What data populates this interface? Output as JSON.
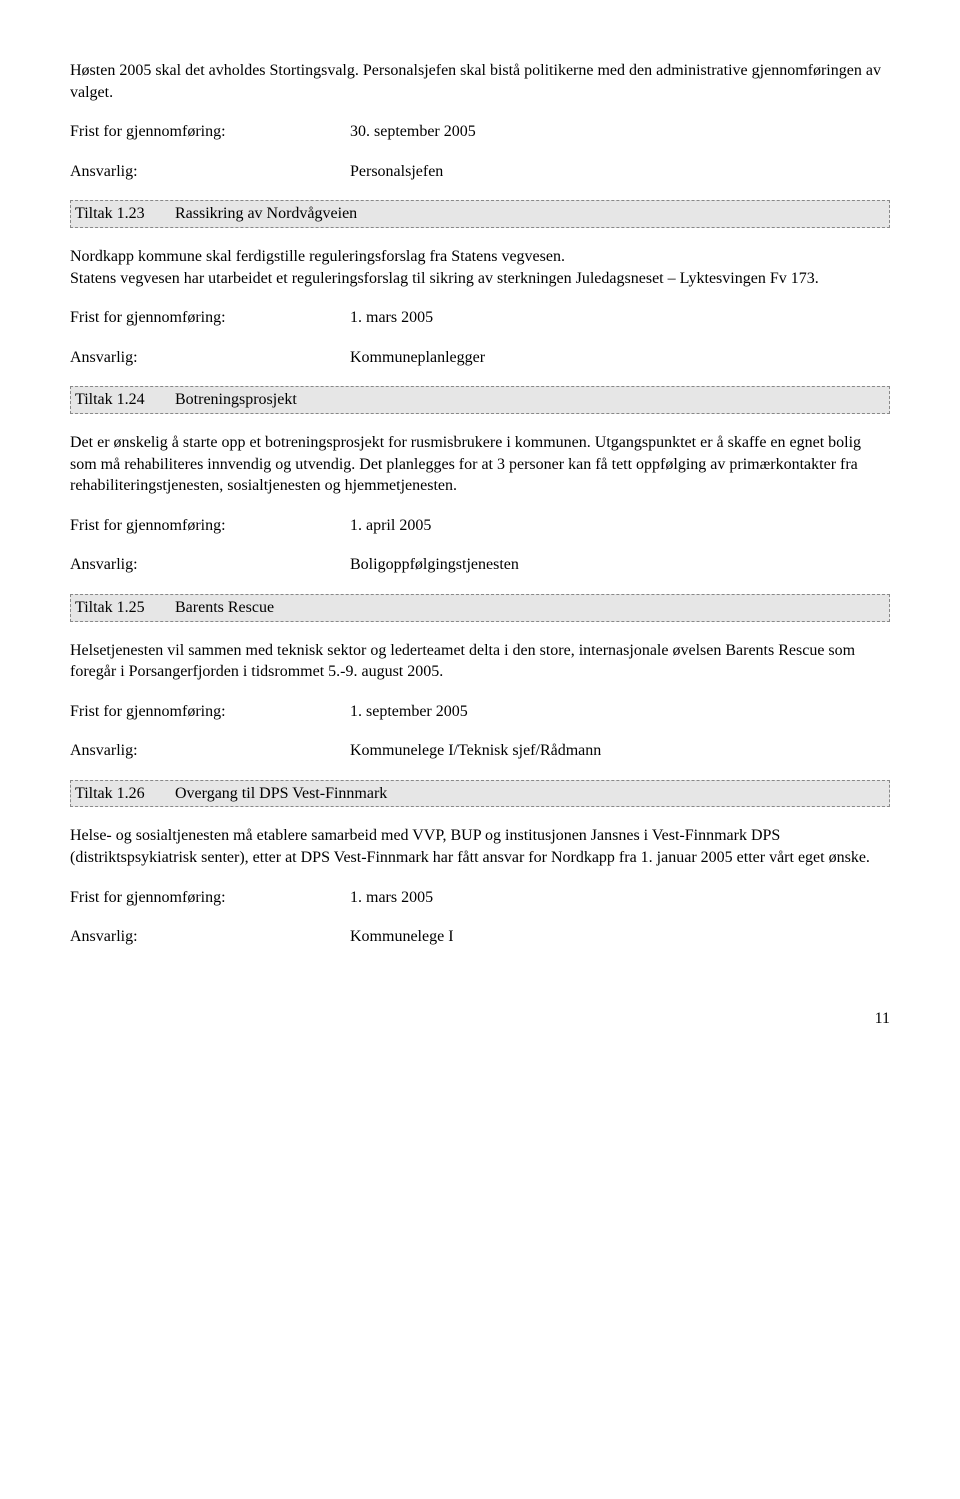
{
  "intro_para": "Høsten 2005 skal det avholdes Stortingsvalg. Personalsjefen skal bistå politikerne med den administrative gjennomføringen av valget.",
  "labels": {
    "frist": "Frist for gjennomføring:",
    "ansvarlig": "Ansvarlig:"
  },
  "section0": {
    "frist_value": "30. september 2005",
    "ansvarlig_value": "Personalsjefen"
  },
  "tiltak123": {
    "num": "Tiltak 1.23",
    "title": "Rassikring av Nordvågveien",
    "body": "Nordkapp kommune skal ferdigstille reguleringsforslag fra Statens vegvesen.\nStatens vegvesen har utarbeidet et reguleringsforslag til sikring av sterkningen Juledagsneset – Lyktesvingen Fv 173.",
    "frist_value": "1. mars 2005",
    "ansvarlig_value": "Kommuneplanlegger"
  },
  "tiltak124": {
    "num": "Tiltak 1.24",
    "title": "Botreningsprosjekt",
    "body": "Det er ønskelig å starte opp et botreningsprosjekt for rusmisbrukere i kommunen. Utgangspunktet er å skaffe en egnet bolig som må rehabiliteres innvendig og utvendig. Det planlegges for at 3 personer kan få tett oppfølging av primærkontakter fra rehabiliteringstjenesten, sosialtjenesten og hjemmetjenesten.",
    "frist_value": "1. april 2005",
    "ansvarlig_value": "Boligoppfølgingstjenesten"
  },
  "tiltak125": {
    "num": "Tiltak 1.25",
    "title": "Barents Rescue",
    "body": "Helsetjenesten vil sammen med teknisk sektor og lederteamet delta i den store, internasjonale øvelsen Barents Rescue som foregår i Porsangerfjorden i tidsrommet 5.-9. august 2005.",
    "frist_value": "1. september 2005",
    "ansvarlig_value": "Kommunelege I/Teknisk sjef/Rådmann"
  },
  "tiltak126": {
    "num": "Tiltak 1.26",
    "title": "Overgang til DPS Vest-Finnmark",
    "body": "Helse- og sosialtjenesten må etablere samarbeid med VVP, BUP og institusjonen Jansnes i Vest-Finnmark DPS (distriktspsykiatrisk senter), etter at DPS Vest-Finnmark har fått ansvar for Nordkapp fra 1. januar 2005 etter vårt eget ønske.",
    "frist_value": "1. mars 2005",
    "ansvarlig_value": "Kommunelege I"
  },
  "page_number": "11"
}
